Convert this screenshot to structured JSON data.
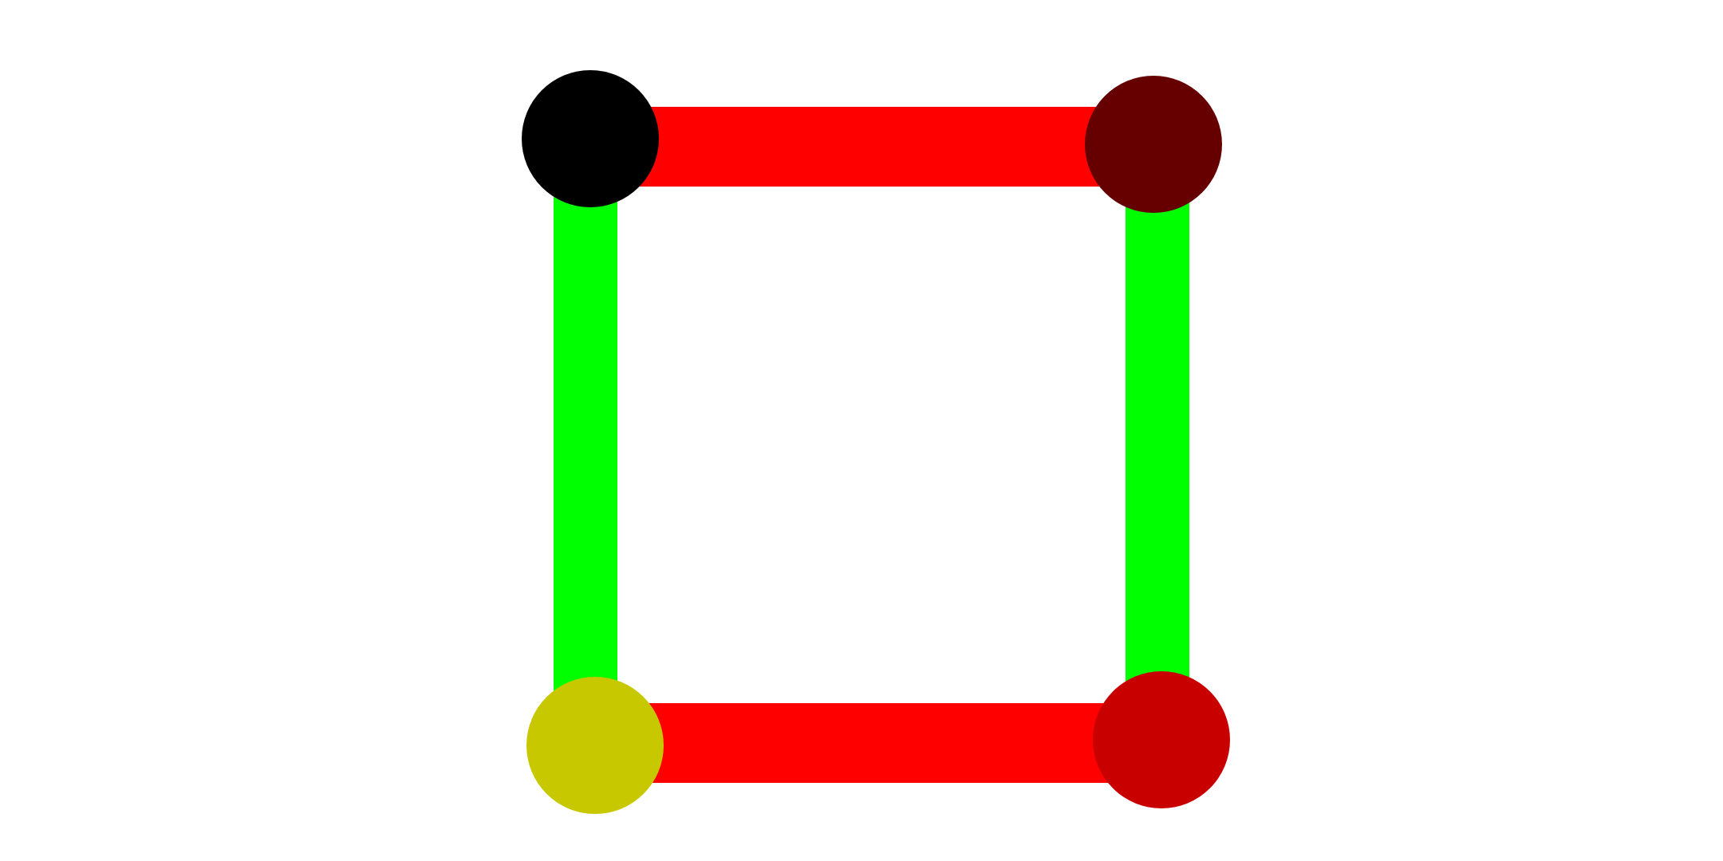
{
  "diagram": {
    "background": "#ffffff",
    "nodes": [
      {
        "id": "top-left",
        "color": "#000000"
      },
      {
        "id": "top-right",
        "color": "#660000"
      },
      {
        "id": "bottom-left",
        "color": "#c8c800"
      },
      {
        "id": "bottom-right",
        "color": "#c80000"
      }
    ],
    "edges": [
      {
        "id": "top",
        "from": "top-left",
        "to": "top-right",
        "color": "#ff0000"
      },
      {
        "id": "bottom",
        "from": "bottom-left",
        "to": "bottom-right",
        "color": "#ff0000"
      },
      {
        "id": "left",
        "from": "top-left",
        "to": "bottom-left",
        "color": "#00ff00"
      },
      {
        "id": "right",
        "from": "top-right",
        "to": "bottom-right",
        "color": "#00ff00"
      }
    ]
  }
}
